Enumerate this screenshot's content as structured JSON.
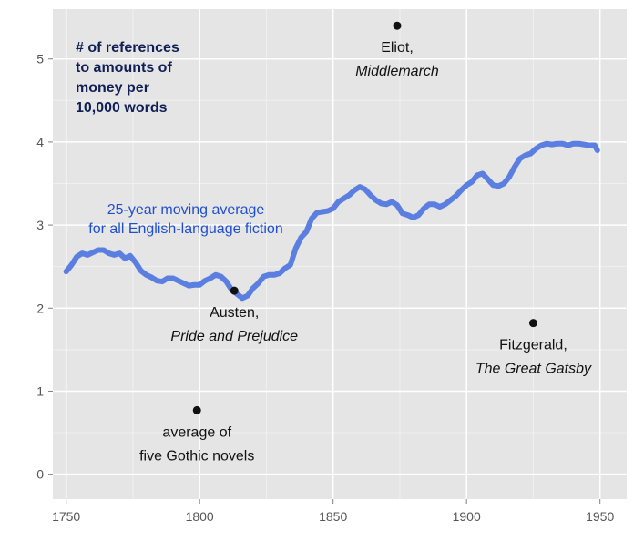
{
  "chart_data": {
    "type": "line",
    "title_lines": [
      "# of references",
      "to amounts of",
      "money per",
      "10,000 words"
    ],
    "xlabel": "",
    "ylabel": "",
    "xlim": [
      1745,
      1960
    ],
    "ylim": [
      -0.3,
      5.6
    ],
    "x_ticks": [
      1750,
      1800,
      1850,
      1900,
      1950
    ],
    "y_ticks": [
      0,
      1,
      2,
      3,
      4,
      5
    ],
    "x_tick_labels": [
      "1750",
      "1800",
      "1850",
      "1900",
      "1950"
    ],
    "y_tick_labels": [
      "0",
      "1",
      "2",
      "3",
      "4",
      "5"
    ],
    "grid": true,
    "series": [
      {
        "label_lines": [
          "25-year moving average",
          "for all English-language fiction"
        ],
        "color": "#5b7fe0",
        "x": [
          1750,
          1752,
          1754,
          1756,
          1758,
          1760,
          1762,
          1764,
          1766,
          1768,
          1770,
          1772,
          1774,
          1776,
          1778,
          1780,
          1782,
          1784,
          1786,
          1788,
          1790,
          1792,
          1794,
          1796,
          1798,
          1800,
          1802,
          1804,
          1806,
          1808,
          1810,
          1812,
          1814,
          1816,
          1818,
          1820,
          1822,
          1824,
          1826,
          1828,
          1830,
          1832,
          1834,
          1836,
          1838,
          1840,
          1842,
          1844,
          1846,
          1848,
          1850,
          1852,
          1854,
          1856,
          1858,
          1860,
          1862,
          1864,
          1866,
          1868,
          1870,
          1872,
          1874,
          1876,
          1878,
          1880,
          1882,
          1884,
          1886,
          1888,
          1890,
          1892,
          1894,
          1896,
          1898,
          1900,
          1902,
          1904,
          1906,
          1908,
          1910,
          1912,
          1914,
          1916,
          1918,
          1920,
          1922,
          1924,
          1926,
          1928,
          1930,
          1932,
          1934,
          1936,
          1938,
          1940,
          1942,
          1944,
          1946,
          1948,
          1949
        ],
        "y": [
          2.44,
          2.52,
          2.62,
          2.66,
          2.64,
          2.67,
          2.7,
          2.7,
          2.66,
          2.64,
          2.66,
          2.6,
          2.63,
          2.55,
          2.45,
          2.4,
          2.37,
          2.33,
          2.32,
          2.36,
          2.36,
          2.33,
          2.3,
          2.27,
          2.28,
          2.28,
          2.33,
          2.36,
          2.4,
          2.38,
          2.32,
          2.22,
          2.17,
          2.12,
          2.15,
          2.24,
          2.3,
          2.38,
          2.4,
          2.4,
          2.42,
          2.48,
          2.52,
          2.72,
          2.85,
          2.92,
          3.08,
          3.15,
          3.16,
          3.17,
          3.2,
          3.28,
          3.32,
          3.36,
          3.42,
          3.46,
          3.43,
          3.36,
          3.3,
          3.26,
          3.25,
          3.28,
          3.24,
          3.14,
          3.12,
          3.09,
          3.12,
          3.2,
          3.25,
          3.25,
          3.22,
          3.25,
          3.3,
          3.35,
          3.42,
          3.48,
          3.52,
          3.6,
          3.62,
          3.55,
          3.48,
          3.47,
          3.5,
          3.58,
          3.7,
          3.8,
          3.84,
          3.86,
          3.92,
          3.96,
          3.98,
          3.97,
          3.98,
          3.98,
          3.96,
          3.98,
          3.98,
          3.97,
          3.96,
          3.96,
          3.9
        ]
      }
    ],
    "annotations": [
      {
        "x": 1874,
        "y": 5.4,
        "lines": [
          "Eliot,",
          "Middlemarch"
        ],
        "italic": [
          false,
          true
        ],
        "position": "below"
      },
      {
        "x": 1813,
        "y": 2.21,
        "lines": [
          "Austen,",
          "Pride and Prejudice"
        ],
        "italic": [
          false,
          true
        ],
        "position": "below"
      },
      {
        "x": 1925,
        "y": 1.82,
        "lines": [
          "Fitzgerald,",
          "The Great Gatsby"
        ],
        "italic": [
          false,
          true
        ],
        "position": "below"
      },
      {
        "x": 1799,
        "y": 0.77,
        "lines": [
          "average of",
          "five Gothic novels"
        ],
        "italic": [
          false,
          false
        ],
        "position": "below"
      }
    ],
    "colors": {
      "panel": "#e5e5e5",
      "grid_major": "#ffffff",
      "grid_minor": "#f0f0f0",
      "tick_text": "#555555",
      "title_text": "#0f1f55",
      "series_label_text": "#1f4fd1",
      "annotation_text": "#111111",
      "point": "#111111"
    }
  }
}
